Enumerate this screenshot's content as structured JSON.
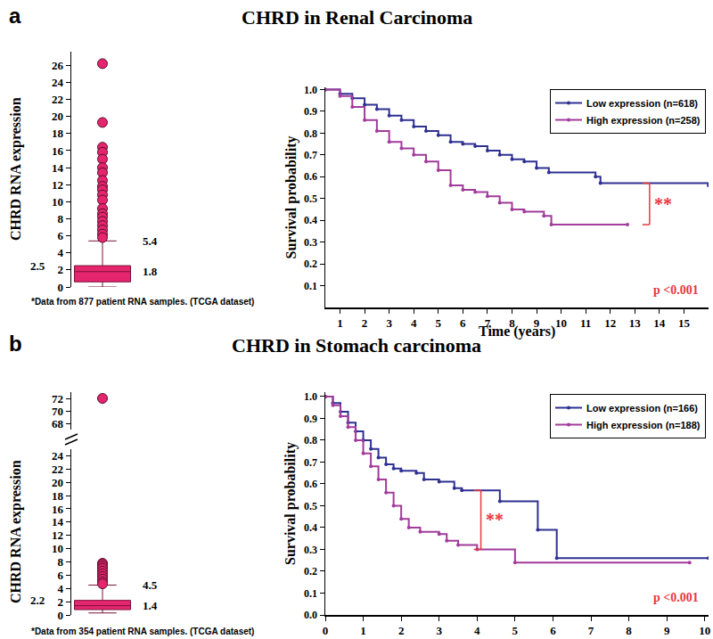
{
  "chart_data": [
    {
      "type": "box",
      "panel_label": "a",
      "title": "CHRD in Renal Carcinoma",
      "note": "*Data from 877 patient RNA samples. (TCGA dataset)",
      "y_label": "CHRD RNA expression",
      "color": "#E5256E",
      "box": {
        "lower_whisker": 0,
        "q1": 0.6,
        "median": 1.8,
        "q3": 2.5,
        "upper_whisker": 5.4
      },
      "data_labels": true,
      "outliers": [
        26.2,
        19.3,
        16.4,
        15.8,
        15.0,
        14.0,
        13.4,
        12.5,
        11.8,
        11.4,
        10.8,
        10.2,
        9.2,
        8.6,
        8.2,
        7.7,
        7.2,
        6.7,
        6.2,
        5.8
      ],
      "ylim": [
        0,
        27.6
      ],
      "yticks": [
        0,
        2,
        4,
        6,
        8,
        10,
        12,
        14,
        16,
        18,
        20,
        22,
        24,
        26
      ],
      "grid": false,
      "tick_labels": "y"
    },
    {
      "type": "line",
      "line_style": "step",
      "marker": "circle",
      "x_label": "Time (years)",
      "y_label": "Survival probability",
      "legend": "top right",
      "xlim": [
        0.4,
        16
      ],
      "xticks": [
        1,
        2,
        3,
        4,
        5,
        6,
        7,
        8,
        9,
        10,
        11,
        12,
        13,
        14,
        15
      ],
      "ylim": [
        0,
        1.01
      ],
      "yticks": [
        0.1,
        0.2,
        0.3,
        0.4,
        0.5,
        0.6,
        0.7,
        0.8,
        0.9,
        {
          "value": 1,
          "label": "1.0"
        }
      ],
      "grid": false,
      "series": [
        {
          "name": "Low expression (n=618)",
          "color": "#2E3192",
          "x": [
            0.4,
            1,
            1.5,
            2,
            2.5,
            3,
            3.5,
            4,
            4.5,
            5,
            5.5,
            6,
            6.5,
            7,
            7.5,
            8,
            8.5,
            9,
            9.5,
            11.4,
            11.6,
            16
          ],
          "values": [
            1.0,
            0.98,
            0.96,
            0.93,
            0.91,
            0.88,
            0.86,
            0.83,
            0.81,
            0.79,
            0.76,
            0.75,
            0.74,
            0.72,
            0.7,
            0.68,
            0.67,
            0.64,
            0.62,
            0.6,
            0.57,
            0.56
          ]
        },
        {
          "name": "High expression (n=258)",
          "color": "#A23B9B",
          "x": [
            0.4,
            1,
            1.5,
            2,
            2.5,
            3,
            3.5,
            4,
            4.5,
            5,
            5.5,
            6,
            6.5,
            7,
            7.5,
            8,
            8.5,
            9.3,
            9.6,
            12.7
          ],
          "values": [
            1.0,
            0.97,
            0.92,
            0.86,
            0.81,
            0.76,
            0.73,
            0.7,
            0.67,
            0.63,
            0.56,
            0.54,
            0.53,
            0.51,
            0.48,
            0.45,
            0.44,
            0.42,
            0.38,
            0.38
          ]
        }
      ],
      "significance": {
        "text": "**",
        "x": 13.6,
        "y1": 0.38,
        "y2": 0.57,
        "color": "#E8383D"
      },
      "p_value": {
        "text": "p <0.001",
        "color": "#E8383D"
      }
    },
    {
      "type": "box",
      "panel_label": "b",
      "title": "CHRD in Stomach carcinoma",
      "note": "*Data from 354 patient RNA samples. (TCGA dataset)",
      "y_label": "CHRD RNA expression",
      "color": "#E5256E",
      "box": {
        "lower_whisker": 0.3,
        "q1": 0.8,
        "median": 1.4,
        "q3": 2.2,
        "upper_whisker": 4.5
      },
      "data_labels": true,
      "outliers": [
        72,
        7.8,
        7.6,
        7.3,
        7.0,
        6.6,
        6.2,
        5.8,
        5.4,
        5.0,
        4.7
      ],
      "ylim": [
        0,
        25
      ],
      "yticks": [
        0,
        2,
        4,
        6,
        8,
        10,
        12,
        14,
        16,
        18,
        20,
        22,
        24
      ],
      "y2lim": [
        67,
        73
      ],
      "y2ticks": [
        68,
        70,
        72
      ],
      "grid": false,
      "tick_labels": "y"
    },
    {
      "type": "line",
      "line_style": "step",
      "marker": "circle",
      "y_label": "Survival probability",
      "legend": "top right",
      "xlim": [
        0,
        10.1
      ],
      "xticks": [
        0,
        1,
        2,
        3,
        4,
        5,
        6,
        7,
        8,
        9,
        10
      ],
      "ylim": [
        0,
        1.02
      ],
      "yticks": [
        {
          "value": 0,
          "label": "0.0"
        },
        0.1,
        0.2,
        0.3,
        0.4,
        0.5,
        0.6,
        0.7,
        0.8,
        0.9,
        {
          "value": 1,
          "label": "1.0"
        }
      ],
      "grid": false,
      "series": [
        {
          "name": "Low expression (n=166)",
          "color": "#2E3192",
          "x": [
            0,
            0.2,
            0.4,
            0.6,
            0.8,
            1.0,
            1.2,
            1.4,
            1.6,
            1.8,
            2.0,
            2.4,
            2.6,
            3.0,
            3.4,
            3.6,
            4.6,
            5.6,
            6.1,
            10.1
          ],
          "values": [
            1.0,
            0.97,
            0.93,
            0.88,
            0.84,
            0.8,
            0.76,
            0.72,
            0.69,
            0.67,
            0.66,
            0.65,
            0.62,
            0.61,
            0.58,
            0.57,
            0.52,
            0.39,
            0.26,
            0.26
          ]
        },
        {
          "name": "High expression (n=188)",
          "color": "#A23B9B",
          "x": [
            0,
            0.2,
            0.4,
            0.6,
            0.8,
            1.0,
            1.2,
            1.4,
            1.6,
            1.8,
            2.0,
            2.2,
            2.5,
            3.0,
            3.2,
            3.5,
            4.0,
            5.0,
            9.6
          ],
          "values": [
            1.0,
            0.96,
            0.91,
            0.86,
            0.8,
            0.74,
            0.68,
            0.62,
            0.56,
            0.5,
            0.44,
            0.4,
            0.38,
            0.37,
            0.34,
            0.32,
            0.3,
            0.24,
            0.24
          ]
        }
      ],
      "significance": {
        "text": "**",
        "x": 4.1,
        "y1": 0.3,
        "y2": 0.57,
        "color": "#E8383D"
      },
      "p_value": {
        "text": "p <0.001",
        "color": "#E8383D"
      }
    }
  ]
}
